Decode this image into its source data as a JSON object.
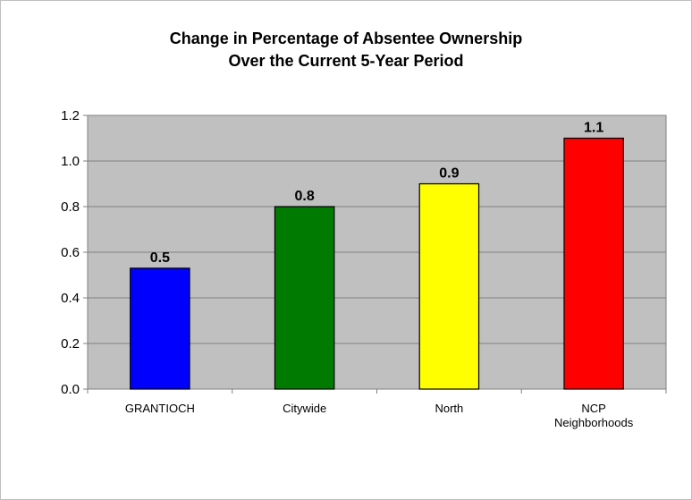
{
  "chart_data": {
    "type": "bar",
    "title": [
      "Change in Percentage of Absentee Ownership",
      "Over the Current 5-Year Period"
    ],
    "categories": [
      [
        "GRANTIOCH"
      ],
      [
        "Citywide"
      ],
      [
        "North"
      ],
      [
        "NCP",
        "Neighborhoods"
      ]
    ],
    "values": [
      0.53,
      0.8,
      0.9,
      1.1
    ],
    "data_labels": [
      "0.5",
      "0.8",
      "0.9",
      "1.1"
    ],
    "bar_colors": [
      "#0000ff",
      "#007a00",
      "#ffff00",
      "#ff0000"
    ],
    "yticks": [
      "0.0",
      "0.2",
      "0.4",
      "0.6",
      "0.8",
      "1.0",
      "1.2"
    ],
    "ylim": [
      0,
      1.2
    ],
    "plot_background": "#c0c0c0",
    "grid": true,
    "legend": "none"
  }
}
